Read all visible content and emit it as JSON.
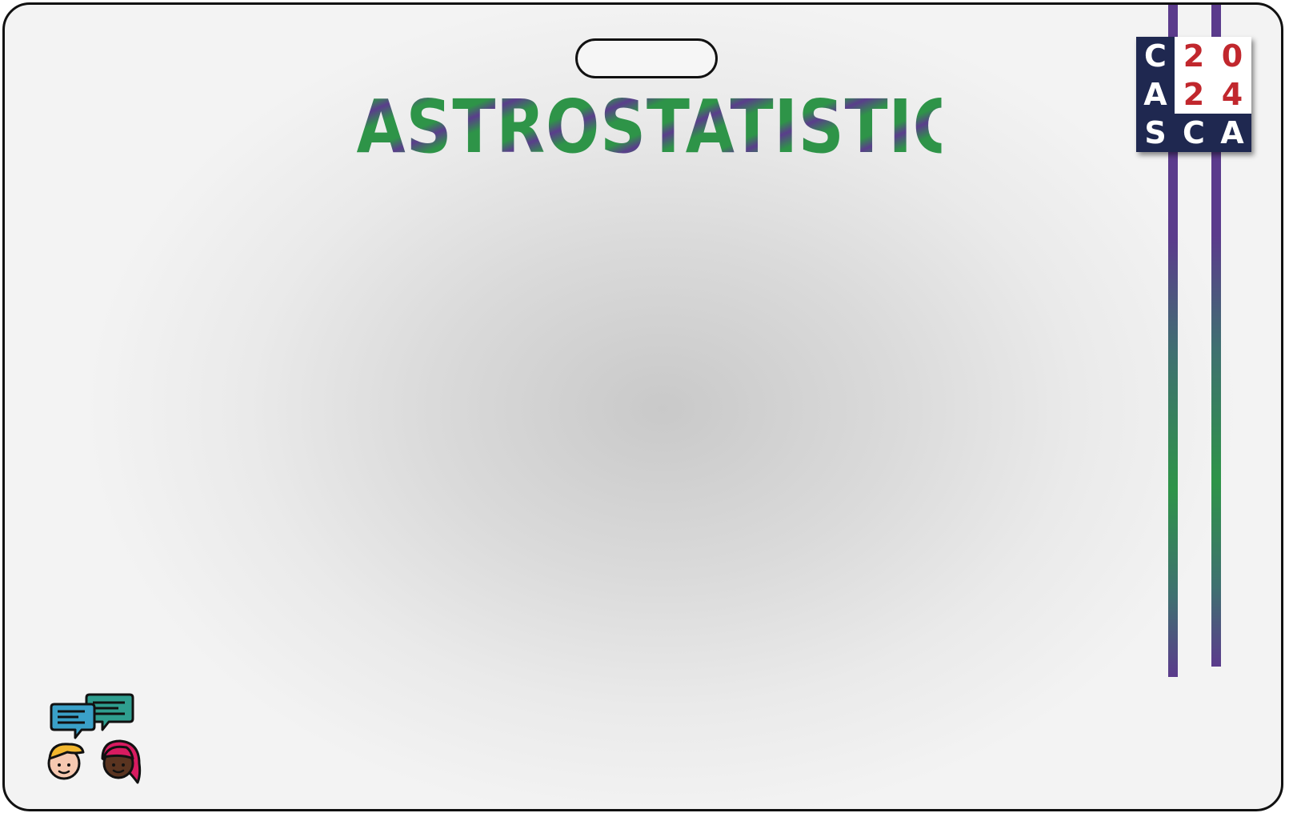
{
  "badge": {
    "title": "ASTROSTATISTICS",
    "colors": {
      "stripe_purple": "#5b3b8c",
      "stripe_green": "#2e9448",
      "logo_navy": "#1f2850",
      "logo_red": "#c1272d"
    }
  },
  "logo": {
    "cells": [
      "C",
      "2",
      "0",
      "A",
      "2",
      "4",
      "S",
      "C",
      "A"
    ]
  },
  "icons": {
    "lanyard_slot": "lanyard-slot-icon",
    "people": "people-chatting-icon"
  }
}
